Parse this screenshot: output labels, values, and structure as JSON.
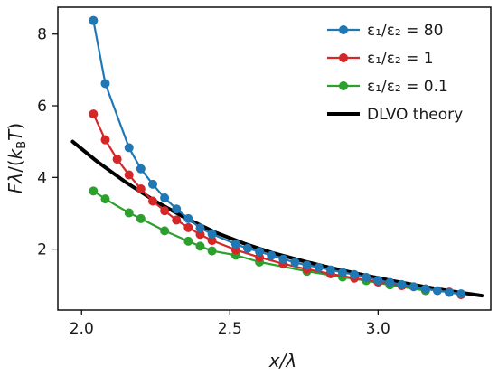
{
  "chart_data": {
    "type": "line",
    "xlabel": "x/λ",
    "ylabel": "Fλ/(k_BT)",
    "xlim": [
      1.92,
      3.38
    ],
    "ylim": [
      0.3,
      8.75
    ],
    "x_ticks": [
      2.0,
      2.5,
      3.0
    ],
    "x_tick_labels": [
      "2.0",
      "2.5",
      "3.0"
    ],
    "y_ticks": [
      2,
      4,
      6,
      8
    ],
    "y_tick_labels": [
      "2",
      "4",
      "6",
      "8"
    ],
    "grid": false,
    "legend_position": "top-right",
    "series": [
      {
        "name": "ε₁/ε₂ = 80",
        "color": "#1f77b4",
        "marker": "circle",
        "x": [
          2.04,
          2.08,
          2.16,
          2.2,
          2.24,
          2.28,
          2.32,
          2.36,
          2.4,
          2.44,
          2.52,
          2.56,
          2.6,
          2.64,
          2.68,
          2.72,
          2.76,
          2.8,
          2.84,
          2.88,
          2.92,
          2.96,
          3.0,
          3.04,
          3.08,
          3.12,
          3.16,
          3.2,
          3.24,
          3.28
        ],
        "y": [
          8.38,
          6.62,
          4.83,
          4.24,
          3.81,
          3.43,
          3.12,
          2.85,
          2.59,
          2.42,
          2.14,
          2.02,
          1.93,
          1.82,
          1.72,
          1.63,
          1.55,
          1.49,
          1.42,
          1.35,
          1.29,
          1.21,
          1.13,
          1.07,
          1.01,
          0.95,
          0.89,
          0.84,
          0.79,
          0.75
        ]
      },
      {
        "name": "ε₁/ε₂ = 1",
        "color": "#d62728",
        "marker": "circle",
        "x": [
          2.04,
          2.08,
          2.12,
          2.16,
          2.2,
          2.24,
          2.28,
          2.32,
          2.36,
          2.4,
          2.44,
          2.52,
          2.6,
          2.68,
          2.76,
          2.84,
          2.92,
          3.0,
          3.08,
          3.16,
          3.24,
          3.28
        ],
        "y": [
          5.77,
          5.05,
          4.51,
          4.07,
          3.68,
          3.34,
          3.07,
          2.81,
          2.6,
          2.41,
          2.24,
          1.98,
          1.77,
          1.59,
          1.44,
          1.31,
          1.19,
          1.08,
          0.98,
          0.89,
          0.8,
          0.73
        ]
      },
      {
        "name": "ε₁/ε₂ = 0.1",
        "color": "#2ca02c",
        "marker": "circle",
        "x": [
          2.04,
          2.08,
          2.16,
          2.2,
          2.28,
          2.36,
          2.4,
          2.44,
          2.52,
          2.6,
          2.76,
          2.88,
          2.96,
          3.04,
          3.16
        ],
        "y": [
          3.62,
          3.4,
          3.01,
          2.85,
          2.51,
          2.22,
          2.08,
          1.95,
          1.83,
          1.64,
          1.38,
          1.22,
          1.12,
          1.0,
          0.84
        ]
      },
      {
        "name": "DLVO theory",
        "color": "#000000",
        "marker": "none",
        "x": [
          1.97,
          2.05,
          2.15,
          2.25,
          2.35,
          2.45,
          2.55,
          2.65,
          2.75,
          2.85,
          2.95,
          3.05,
          3.15,
          3.25,
          3.35
        ],
        "y": [
          5.0,
          4.46,
          3.86,
          3.33,
          2.87,
          2.47,
          2.15,
          1.88,
          1.66,
          1.46,
          1.28,
          1.11,
          0.96,
          0.82,
          0.7
        ]
      }
    ]
  }
}
